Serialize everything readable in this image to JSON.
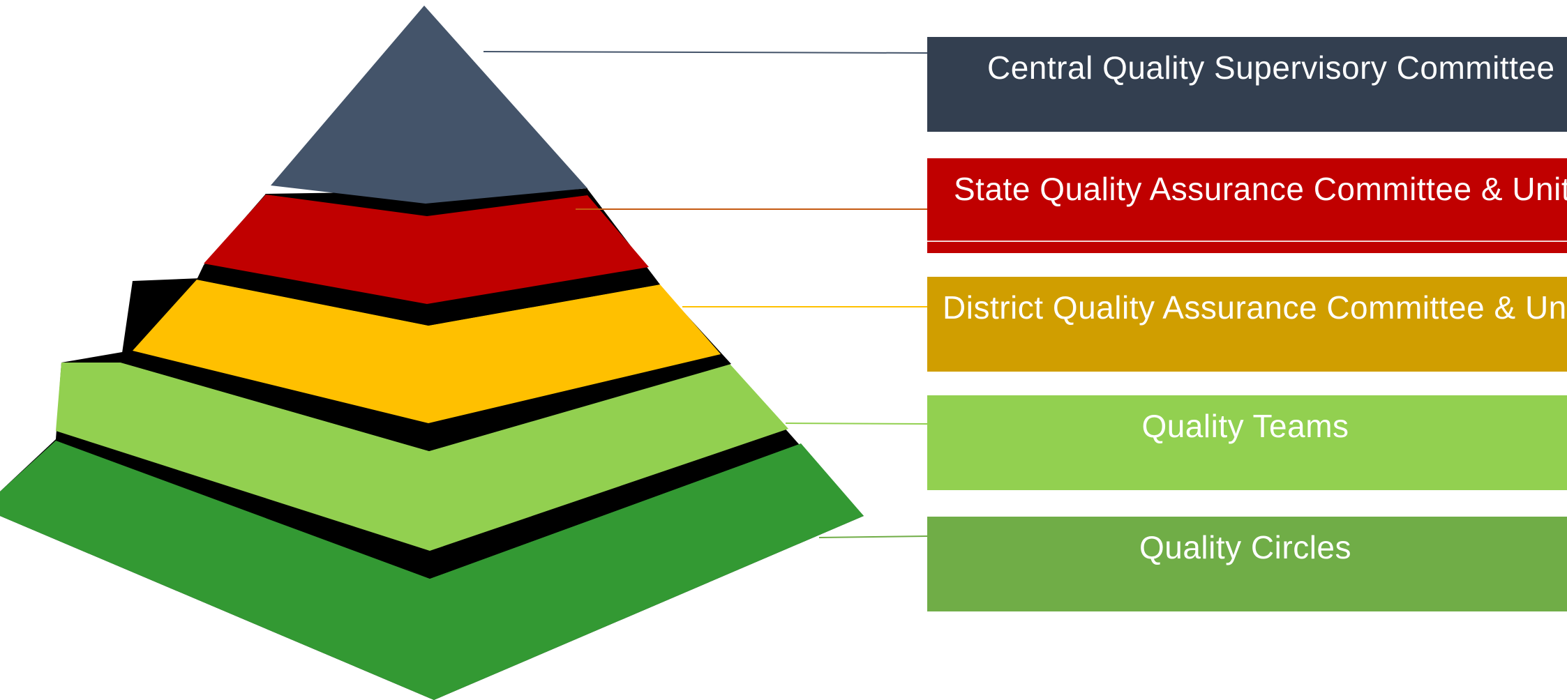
{
  "levels": [
    {
      "id": "central",
      "label": "Central Quality Supervisory Committee",
      "box_color": "#333f50",
      "tier_color": "#44546a",
      "line_color": "#44546a"
    },
    {
      "id": "state",
      "label": "State Quality Assurance Committee & Unit",
      "box_color": "#c00000",
      "tier_color": "#c00000",
      "line_color": "#c55a11"
    },
    {
      "id": "district",
      "label": "District Quality Assurance Committee & Unit",
      "box_color": "#d09e00",
      "tier_color": "#ffc000",
      "line_color": "#ffc000"
    },
    {
      "id": "teams",
      "label": "Quality Teams",
      "box_color": "#92d050",
      "tier_color": "#92d050",
      "line_color": "#92d050"
    },
    {
      "id": "circles",
      "label": "Quality Circles",
      "box_color": "#70ad47",
      "tier_color": "#339933",
      "line_color": "#70ad47"
    }
  ],
  "shadow_color": "#000000"
}
